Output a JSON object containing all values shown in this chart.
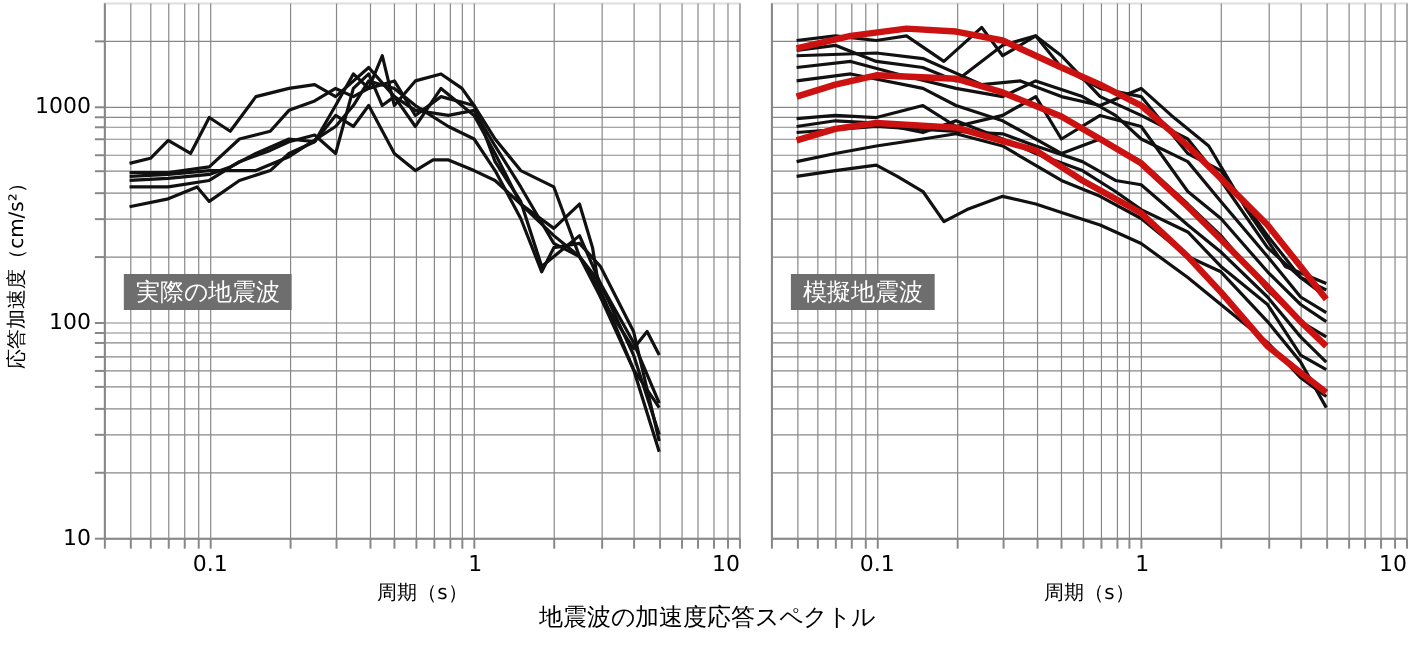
{
  "chart_data": [
    {
      "type": "line",
      "xlabel": "周期（s）",
      "ylabel": "応答加速度（cm/s²）",
      "log": "xy",
      "grid": true,
      "xlim": [
        0.04,
        10
      ],
      "ylim": [
        10,
        3000
      ],
      "xticks": [
        {
          "value": 0.04,
          "label": null
        },
        {
          "value": 0.05,
          "label": null
        },
        {
          "value": 0.06,
          "label": null
        },
        {
          "value": 0.07,
          "label": null
        },
        {
          "value": 0.08,
          "label": null
        },
        {
          "value": 0.09,
          "label": null
        },
        0.1,
        {
          "value": 0.2,
          "label": null
        },
        {
          "value": 0.3,
          "label": null
        },
        {
          "value": 0.4,
          "label": null
        },
        {
          "value": 0.5,
          "label": null
        },
        {
          "value": 0.6,
          "label": null
        },
        {
          "value": 0.7,
          "label": null
        },
        {
          "value": 0.8,
          "label": null
        },
        {
          "value": 0.9,
          "label": null
        },
        1,
        {
          "value": 2,
          "label": null
        },
        {
          "value": 3,
          "label": null
        },
        {
          "value": 4,
          "label": null
        },
        {
          "value": 5,
          "label": null
        },
        {
          "value": 6,
          "label": null
        },
        {
          "value": 7,
          "label": null
        },
        {
          "value": 8,
          "label": null
        },
        {
          "value": 9,
          "label": null
        },
        10
      ],
      "yticks": [
        10,
        {
          "value": 20,
          "label": null
        },
        {
          "value": 30,
          "label": null
        },
        {
          "value": 40,
          "label": null
        },
        {
          "value": 50,
          "label": null
        },
        {
          "value": 60,
          "label": null
        },
        {
          "value": 70,
          "label": null
        },
        {
          "value": 80,
          "label": null
        },
        {
          "value": 90,
          "label": null
        },
        100,
        {
          "value": 200,
          "label": null
        },
        {
          "value": 300,
          "label": null
        },
        {
          "value": 400,
          "label": null
        },
        {
          "value": 500,
          "label": null
        },
        {
          "value": 600,
          "label": null
        },
        {
          "value": 700,
          "label": null
        },
        {
          "value": 800,
          "label": null
        },
        {
          "value": 900,
          "label": null
        },
        1000,
        {
          "value": 2000,
          "label": null
        }
      ],
      "annotations": [
        "実際の地震波",
        "地震波の加速度応答スペクトル"
      ],
      "series": [
        {
          "color": "#111111",
          "x": [
            0.05,
            0.06,
            0.07,
            0.085,
            0.1,
            0.12,
            0.15,
            0.2,
            0.25,
            0.3,
            0.4,
            0.5,
            0.6,
            0.8,
            1,
            1.2,
            1.5,
            2,
            2.5,
            3,
            4,
            5
          ],
          "values": [
            540,
            570,
            690,
            600,
            880,
            760,
            1100,
            1200,
            1250,
            1100,
            1500,
            1100,
            950,
            900,
            950,
            650,
            420,
            230,
            200,
            150,
            70,
            30
          ]
        },
        {
          "color": "#111111",
          "x": [
            0.05,
            0.07,
            0.1,
            0.13,
            0.17,
            0.2,
            0.25,
            0.3,
            0.35,
            0.4,
            0.45,
            0.5,
            0.6,
            0.75,
            0.9,
            1,
            1.2,
            1.5,
            1.8,
            2,
            2.5,
            3,
            4,
            5
          ],
          "values": [
            490,
            490,
            520,
            700,
            760,
            950,
            1050,
            1200,
            1100,
            1200,
            1700,
            1000,
            1300,
            1400,
            1200,
            1000,
            550,
            360,
            180,
            200,
            250,
            150,
            80,
            42
          ]
        },
        {
          "color": "#111111",
          "x": [
            0.05,
            0.07,
            0.1,
            0.12,
            0.15,
            0.2,
            0.25,
            0.3,
            0.35,
            0.4,
            0.5,
            0.6,
            0.75,
            1,
            1.2,
            1.5,
            2,
            2.5,
            3,
            4,
            5
          ],
          "values": [
            450,
            460,
            480,
            520,
            600,
            700,
            680,
            1000,
            1400,
            1200,
            1300,
            900,
            1100,
            1000,
            700,
            500,
            420,
            200,
            140,
            60,
            40
          ]
        },
        {
          "color": "#111111",
          "x": [
            0.05,
            0.07,
            0.1,
            0.13,
            0.17,
            0.2,
            0.25,
            0.3,
            0.35,
            0.4,
            0.45,
            0.5,
            0.6,
            0.75,
            1,
            1.2,
            1.5,
            2,
            2.5,
            3,
            4,
            5
          ],
          "values": [
            420,
            420,
            450,
            550,
            620,
            680,
            730,
            600,
            1200,
            1400,
            1000,
            1100,
            800,
            1200,
            900,
            600,
            350,
            250,
            200,
            130,
            60,
            25
          ]
        },
        {
          "color": "#111111",
          "x": [
            0.05,
            0.07,
            0.09,
            0.1,
            0.13,
            0.17,
            0.2,
            0.25,
            0.3,
            0.35,
            0.4,
            0.5,
            0.6,
            0.7,
            0.8,
            1,
            1.2,
            1.5,
            2,
            2.5,
            2.8,
            3,
            4,
            4.5,
            5
          ],
          "values": [
            340,
            370,
            420,
            360,
            450,
            500,
            600,
            680,
            900,
            800,
            1000,
            600,
            500,
            560,
            560,
            500,
            450,
            350,
            270,
            350,
            220,
            130,
            75,
            90,
            70
          ]
        },
        {
          "color": "#111111",
          "x": [
            0.05,
            0.07,
            0.1,
            0.15,
            0.2,
            0.3,
            0.35,
            0.4,
            0.5,
            0.6,
            0.8,
            1,
            1.2,
            1.5,
            1.8,
            2,
            2.5,
            3,
            4,
            5
          ],
          "values": [
            470,
            480,
            500,
            500,
            580,
            800,
            1000,
            1300,
            1200,
            1000,
            800,
            700,
            500,
            300,
            170,
            220,
            230,
            180,
            90,
            28
          ]
        }
      ]
    },
    {
      "type": "line",
      "xlabel": "周期（s）",
      "log": "xy",
      "grid": true,
      "tick_labels": "x",
      "xlim": [
        0.04,
        10
      ],
      "ylim": [
        10,
        3000
      ],
      "xticks": [
        {
          "value": 0.04,
          "label": null
        },
        {
          "value": 0.05,
          "label": null
        },
        {
          "value": 0.06,
          "label": null
        },
        {
          "value": 0.07,
          "label": null
        },
        {
          "value": 0.08,
          "label": null
        },
        {
          "value": 0.09,
          "label": null
        },
        0.1,
        {
          "value": 0.2,
          "label": null
        },
        {
          "value": 0.3,
          "label": null
        },
        {
          "value": 0.4,
          "label": null
        },
        {
          "value": 0.5,
          "label": null
        },
        {
          "value": 0.6,
          "label": null
        },
        {
          "value": 0.7,
          "label": null
        },
        {
          "value": 0.8,
          "label": null
        },
        {
          "value": 0.9,
          "label": null
        },
        1,
        {
          "value": 2,
          "label": null
        },
        {
          "value": 3,
          "label": null
        },
        {
          "value": 4,
          "label": null
        },
        {
          "value": 5,
          "label": null
        },
        {
          "value": 6,
          "label": null
        },
        {
          "value": 7,
          "label": null
        },
        {
          "value": 8,
          "label": null
        },
        {
          "value": 9,
          "label": null
        },
        10
      ],
      "yticks": [
        10,
        {
          "value": 20,
          "label": null
        },
        {
          "value": 30,
          "label": null
        },
        {
          "value": 40,
          "label": null
        },
        {
          "value": 50,
          "label": null
        },
        {
          "value": 60,
          "label": null
        },
        {
          "value": 70,
          "label": null
        },
        {
          "value": 80,
          "label": null
        },
        {
          "value": 90,
          "label": null
        },
        100,
        {
          "value": 200,
          "label": null
        },
        {
          "value": 300,
          "label": null
        },
        {
          "value": 400,
          "label": null
        },
        {
          "value": 500,
          "label": null
        },
        {
          "value": 600,
          "label": null
        },
        {
          "value": 700,
          "label": null
        },
        {
          "value": 800,
          "label": null
        },
        {
          "value": 900,
          "label": null
        },
        1000,
        {
          "value": 2000,
          "label": null
        }
      ],
      "annotations": [
        "模擬地震波"
      ],
      "series": [
        {
          "color": "#111111",
          "x": [
            0.05,
            0.07,
            0.1,
            0.13,
            0.18,
            0.25,
            0.3,
            0.4,
            0.5,
            0.7,
            1,
            1.5,
            2,
            3,
            4,
            5
          ],
          "values": [
            2000,
            2100,
            2000,
            2100,
            1600,
            2300,
            1700,
            2100,
            1700,
            1100,
            900,
            700,
            450,
            220,
            160,
            130
          ]
        },
        {
          "color": "#111111",
          "x": [
            0.05,
            0.07,
            0.1,
            0.15,
            0.2,
            0.3,
            0.4,
            0.5,
            0.7,
            1,
            1.5,
            2,
            3,
            4,
            5
          ],
          "values": [
            1800,
            1900,
            1600,
            1500,
            1300,
            1900,
            2100,
            1500,
            1200,
            1100,
            600,
            500,
            250,
            160,
            140
          ]
        },
        {
          "color": "#111111",
          "x": [
            0.05,
            0.08,
            0.12,
            0.2,
            0.3,
            0.4,
            0.6,
            0.8,
            1,
            1.5,
            2,
            3,
            4,
            5
          ],
          "values": [
            1500,
            1600,
            1400,
            1200,
            1100,
            1300,
            1100,
            900,
            700,
            550,
            360,
            200,
            130,
            110
          ]
        },
        {
          "color": "#111111",
          "x": [
            0.05,
            0.07,
            0.1,
            0.15,
            0.2,
            0.3,
            0.4,
            0.5,
            0.7,
            1,
            1.5,
            2,
            3,
            4,
            5
          ],
          "values": [
            870,
            900,
            880,
            1000,
            800,
            900,
            1100,
            700,
            900,
            800,
            400,
            300,
            170,
            120,
            100
          ]
        },
        {
          "color": "#111111",
          "x": [
            0.05,
            0.07,
            0.1,
            0.15,
            0.2,
            0.3,
            0.4,
            0.6,
            0.8,
            1,
            1.5,
            2,
            3,
            4,
            5
          ],
          "values": [
            800,
            850,
            830,
            750,
            850,
            700,
            600,
            500,
            400,
            330,
            260,
            180,
            120,
            70,
            60
          ]
        },
        {
          "color": "#111111",
          "x": [
            0.05,
            0.07,
            0.1,
            0.15,
            0.2,
            0.3,
            0.5,
            0.7,
            1,
            1.5,
            2,
            3,
            4,
            5
          ],
          "values": [
            550,
            600,
            650,
            700,
            740,
            650,
            450,
            380,
            300,
            200,
            170,
            100,
            65,
            40
          ]
        },
        {
          "color": "#111111",
          "x": [
            0.05,
            0.07,
            0.1,
            0.12,
            0.15,
            0.18,
            0.22,
            0.3,
            0.4,
            0.5,
            0.7,
            1,
            1.5,
            2,
            3,
            4,
            5
          ],
          "values": [
            470,
            500,
            530,
            470,
            400,
            290,
            330,
            380,
            350,
            320,
            280,
            230,
            160,
            120,
            80,
            55,
            45
          ]
        },
        {
          "color": "#111111",
          "x": [
            0.05,
            0.1,
            0.2,
            0.3,
            0.4,
            0.6,
            0.8,
            1,
            1.5,
            2,
            3,
            4,
            5
          ],
          "values": [
            750,
            800,
            760,
            740,
            650,
            550,
            450,
            430,
            280,
            210,
            130,
            85,
            65
          ]
        },
        {
          "color": "#111111",
          "x": [
            0.05,
            0.08,
            0.15,
            0.2,
            0.3,
            0.5,
            0.7,
            1,
            1.5,
            2,
            3,
            4,
            5
          ],
          "values": [
            1300,
            1400,
            1200,
            1000,
            850,
            600,
            700,
            550,
            350,
            250,
            140,
            100,
            85
          ]
        },
        {
          "color": "#111111",
          "x": [
            0.05,
            0.1,
            0.15,
            0.25,
            0.35,
            0.5,
            0.7,
            1,
            1.3,
            1.8,
            2.5,
            3.5,
            5
          ],
          "values": [
            1700,
            1750,
            1650,
            1250,
            1300,
            1100,
            1000,
            1200,
            900,
            650,
            330,
            180,
            150
          ]
        },
        {
          "color": "#cc1111",
          "x": [
            0.05,
            0.08,
            0.13,
            0.2,
            0.3,
            0.5,
            0.7,
            1,
            1.5,
            2,
            3,
            4,
            5
          ],
          "values": [
            1840,
            2100,
            2270,
            2200,
            2000,
            1500,
            1250,
            1000,
            650,
            460,
            280,
            180,
            127
          ]
        },
        {
          "color": "#cc1111",
          "x": [
            0.05,
            0.07,
            0.1,
            0.2,
            0.3,
            0.5,
            0.7,
            1,
            1.5,
            2,
            3,
            4,
            5
          ],
          "values": [
            1100,
            1250,
            1380,
            1330,
            1150,
            890,
            700,
            540,
            340,
            240,
            145,
            100,
            77
          ]
        },
        {
          "color": "#cc1111",
          "x": [
            0.05,
            0.07,
            0.1,
            0.2,
            0.4,
            0.6,
            1,
            1.5,
            2,
            3,
            4,
            5
          ],
          "values": [
            690,
            780,
            830,
            790,
            620,
            450,
            318,
            200,
            137,
            77,
            58,
            47
          ]
        }
      ]
    }
  ]
}
